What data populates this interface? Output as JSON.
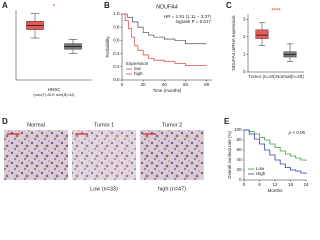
{
  "panel_labels": [
    "A",
    "B",
    "C",
    "D",
    "E"
  ],
  "chart_data": [
    {
      "type": "box",
      "categories": [
        null,
        null
      ],
      "xlabel": "HNSC",
      "xsublabel": "(num(T)=519; num(N)=44)",
      "ylim": [
        0,
        100
      ],
      "annotations": [
        "*"
      ],
      "annotation_color": "#e03030",
      "boxes": [
        {
          "color": "#e03030",
          "min": 60,
          "q1": 72,
          "median": 78,
          "q3": 84,
          "max": 95
        },
        {
          "color": "#555555",
          "min": 38,
          "q1": 44,
          "median": 48,
          "q3": 52,
          "max": 58
        }
      ]
    },
    {
      "type": "line",
      "step": true,
      "title": "NDUFA4",
      "xlabel": "Time (months)",
      "ylabel": "Probability",
      "xlim": [
        0,
        85
      ],
      "xticks": [
        0,
        20,
        40,
        60,
        80
      ],
      "ylim": [
        0,
        1
      ],
      "yticks": [
        {
          "value": 0,
          "label": "0.0"
        },
        {
          "value": 0.2,
          "label": "0.2"
        },
        {
          "value": 0.4,
          "label": "0.4"
        },
        {
          "value": 0.6,
          "label": "0.6"
        },
        {
          "value": 0.8,
          "label": "0.8"
        },
        {
          "value": 1,
          "label": "1.0"
        }
      ],
      "annotations": [
        "HR = 1.91 (1.11 − 3.27)",
        "logrank P = 0.017"
      ],
      "annotation_color": "#222222",
      "legend": "lower left",
      "legend_title": "Expression",
      "series": [
        {
          "name": "low",
          "color": "#666666",
          "x": [
            0,
            5,
            10,
            15,
            20,
            25,
            30,
            40,
            50,
            60,
            70,
            80
          ],
          "values": [
            1,
            0.95,
            0.88,
            0.8,
            0.72,
            0.68,
            0.65,
            0.62,
            0.6,
            0.55,
            0.55,
            0.55
          ]
        },
        {
          "name": "high",
          "color": "#e05050",
          "x": [
            0,
            3,
            6,
            9,
            12,
            15,
            20,
            25,
            30,
            40,
            50,
            60,
            80
          ],
          "values": [
            1,
            0.9,
            0.78,
            0.65,
            0.52,
            0.45,
            0.38,
            0.33,
            0.3,
            0.28,
            0.25,
            0.22,
            0.22
          ]
        }
      ]
    },
    {
      "type": "box",
      "categories": [
        "Tumor (n=20)",
        "Normal(n=20)"
      ],
      "ylabel": "NDUFA4 mRNA expression",
      "ylim": [
        0,
        3.3
      ],
      "yticks": [
        0,
        1,
        2,
        3
      ],
      "annotations": [
        "****"
      ],
      "annotation_color": "#e03030",
      "boxes": [
        {
          "color": "#e03030",
          "min": 1.5,
          "q1": 1.9,
          "median": 2.1,
          "q3": 2.4,
          "max": 2.8
        },
        {
          "color": "#555555",
          "min": 0.6,
          "q1": 0.85,
          "median": 1.0,
          "q3": 1.15,
          "max": 1.6
        }
      ]
    },
    {
      "type": "line",
      "step": true,
      "xlabel": "Months",
      "ylabel": "Overall survival rate (%)",
      "xlim": [
        0,
        24
      ],
      "xticks": [
        0,
        6,
        12,
        18,
        24
      ],
      "ylim": [
        0,
        100
      ],
      "yticks": [
        0,
        20,
        40,
        60,
        80,
        100
      ],
      "annotations": [
        "p < 0.05"
      ],
      "annotation_color": "#222222",
      "legend": "lower left",
      "series": [
        {
          "name": "Low",
          "color": "#3aa03a",
          "x": [
            0,
            2,
            4,
            6,
            8,
            10,
            12,
            14,
            16,
            18,
            20,
            22,
            24
          ],
          "values": [
            100,
            97,
            92,
            85,
            80,
            72,
            65,
            58,
            52,
            48,
            44,
            40,
            38
          ]
        },
        {
          "name": "High",
          "color": "#2a3fb0",
          "x": [
            0,
            2,
            4,
            6,
            8,
            10,
            12,
            14,
            16,
            18,
            20,
            22,
            24
          ],
          "values": [
            100,
            92,
            82,
            72,
            60,
            50,
            40,
            32,
            25,
            20,
            18,
            14,
            12
          ]
        }
      ]
    }
  ],
  "ihc": {
    "images": [
      "Normal",
      "Tumor 1",
      "Tumor 2"
    ],
    "groups": [
      "Low (n=33)",
      "high (n=47)"
    ]
  }
}
